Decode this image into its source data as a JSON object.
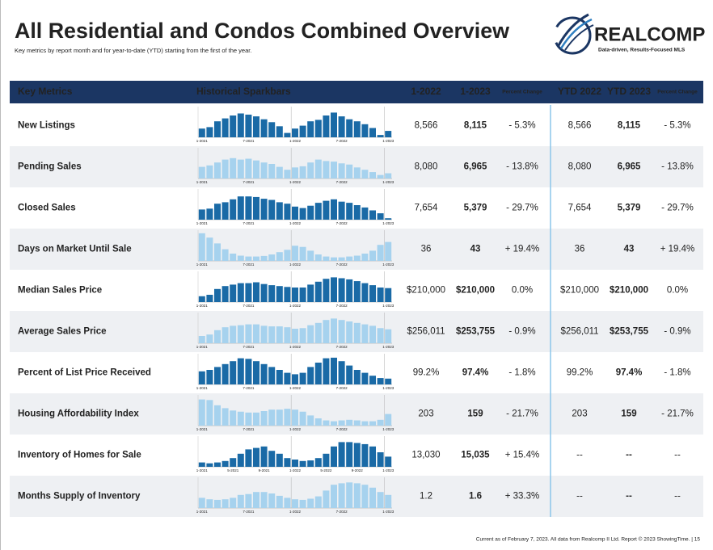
{
  "header": {
    "title": "All Residential and Condos Combined Overview",
    "subtitle": "Key metrics by report month and for year-to-date (YTD) starting from the first of the year."
  },
  "logo": {
    "name": "REALCOMP",
    "tagline": "Data-driven, Results-Focused MLS"
  },
  "table": {
    "columns": [
      "Key Metrics",
      "Historical Sparkbars",
      "1-2022",
      "1-2023",
      "Percent Change",
      "YTD 2022",
      "YTD 2023",
      "Percent Change"
    ],
    "rows": [
      {
        "metric": "New Listings",
        "sparkbars": {
          "color": "#1a6aa6",
          "labels": [
            "1-2021",
            "7-2021",
            "1-2022",
            "7-2022",
            "1-2023"
          ],
          "values": [
            30,
            35,
            55,
            65,
            75,
            82,
            78,
            72,
            62,
            52,
            38,
            15,
            30,
            40,
            55,
            60,
            75,
            85,
            72,
            62,
            55,
            45,
            32,
            8,
            22
          ]
        },
        "cells": [
          "8,566",
          "8,115",
          "- 5.3%",
          "8,566",
          "8,115",
          "- 5.3%"
        ]
      },
      {
        "metric": "Pending Sales",
        "sparkbars": {
          "color": "#a6d2ee",
          "labels": [
            "1-2021",
            "7-2021",
            "1-2022",
            "7-2022",
            "1-2023"
          ],
          "values": [
            40,
            45,
            55,
            65,
            70,
            65,
            68,
            62,
            55,
            50,
            40,
            30,
            38,
            42,
            55,
            65,
            60,
            58,
            52,
            48,
            38,
            30,
            22,
            12,
            18
          ]
        },
        "cells": [
          "8,080",
          "6,965",
          "- 13.8%",
          "8,080",
          "6,965",
          "- 13.8%"
        ]
      },
      {
        "metric": "Closed Sales",
        "sparkbars": {
          "color": "#1a6aa6",
          "labels": [
            "1-2021",
            "7-2021",
            "1-2022",
            "7-2022",
            "1-2023"
          ],
          "values": [
            35,
            38,
            55,
            60,
            70,
            80,
            80,
            78,
            72,
            68,
            60,
            55,
            45,
            40,
            48,
            58,
            65,
            70,
            62,
            58,
            50,
            42,
            32,
            22,
            5
          ]
        },
        "cells": [
          "7,654",
          "5,379",
          "- 29.7%",
          "7,654",
          "5,379",
          "- 29.7%"
        ]
      },
      {
        "metric": "Days on Market Until Sale",
        "sparkbars": {
          "color": "#a6d2ee",
          "labels": [
            "1-2021",
            "7-2021",
            "1-2022",
            "7-2022",
            "1-2023"
          ],
          "values": [
            95,
            80,
            60,
            40,
            25,
            18,
            15,
            15,
            17,
            22,
            30,
            38,
            52,
            48,
            35,
            22,
            15,
            12,
            12,
            15,
            18,
            25,
            35,
            55,
            65
          ]
        },
        "cells": [
          "36",
          "43",
          "+ 19.4%",
          "36",
          "43",
          "+ 19.4%"
        ]
      },
      {
        "metric": "Median Sales Price",
        "sparkbars": {
          "color": "#1a6aa6",
          "labels": [
            "1-2021",
            "7-2021",
            "1-2022",
            "7-2022",
            "1-2023"
          ],
          "values": [
            20,
            25,
            45,
            55,
            60,
            65,
            65,
            68,
            62,
            58,
            55,
            52,
            50,
            50,
            60,
            70,
            80,
            85,
            82,
            78,
            72,
            65,
            58,
            50,
            48
          ]
        },
        "cells": [
          "$210,000",
          "$210,000",
          "0.0%",
          "$210,000",
          "$210,000",
          "0.0%"
        ]
      },
      {
        "metric": "Average Sales Price",
        "sparkbars": {
          "color": "#a6d2ee",
          "labels": [
            "1-2021",
            "7-2021",
            "1-2022",
            "7-2022",
            "1-2023"
          ],
          "values": [
            25,
            30,
            45,
            55,
            60,
            62,
            65,
            65,
            60,
            58,
            58,
            55,
            50,
            52,
            62,
            70,
            80,
            85,
            80,
            75,
            70,
            65,
            60,
            52,
            48
          ]
        },
        "cells": [
          "$256,011",
          "$253,755",
          "- 0.9%",
          "$256,011",
          "$253,755",
          "- 0.9%"
        ]
      },
      {
        "metric": "Percent of List Price Received",
        "sparkbars": {
          "color": "#1a6aa6",
          "labels": [
            "1-2021",
            "7-2021",
            "1-2022",
            "7-2022",
            "1-2023"
          ],
          "values": [
            45,
            50,
            60,
            70,
            80,
            90,
            88,
            80,
            70,
            60,
            50,
            40,
            35,
            40,
            60,
            75,
            90,
            92,
            80,
            65,
            50,
            40,
            30,
            22,
            20
          ]
        },
        "cells": [
          "99.2%",
          "97.4%",
          "- 1.8%",
          "99.2%",
          "97.4%",
          "- 1.8%"
        ]
      },
      {
        "metric": "Housing Affordability Index",
        "sparkbars": {
          "color": "#a6d2ee",
          "labels": [
            "1-2021",
            "7-2021",
            "1-2022",
            "7-2022",
            "1-2023"
          ],
          "values": [
            90,
            88,
            70,
            60,
            52,
            48,
            45,
            45,
            50,
            55,
            55,
            58,
            55,
            48,
            35,
            25,
            18,
            15,
            18,
            20,
            18,
            15,
            15,
            20,
            40
          ]
        },
        "cells": [
          "203",
          "159",
          "- 21.7%",
          "203",
          "159",
          "- 21.7%"
        ]
      },
      {
        "metric": "Inventory of Homes for Sale",
        "sparkbars": {
          "color": "#1a6aa6",
          "labels": [
            "1-2021",
            "5-2021",
            "9-2021",
            "1-2022",
            "5-2022",
            "9-2022",
            "1-2023"
          ],
          "values": [
            15,
            12,
            15,
            20,
            30,
            45,
            60,
            65,
            70,
            55,
            45,
            30,
            25,
            20,
            22,
            30,
            45,
            70,
            85,
            85,
            82,
            78,
            70,
            50,
            35
          ]
        },
        "cells": [
          "13,030",
          "15,035",
          "+ 15.4%",
          "--",
          "--",
          "--"
        ]
      },
      {
        "metric": "Months Supply of Inventory",
        "sparkbars": {
          "color": "#a6d2ee",
          "labels": [
            "1-2021",
            "7-2021",
            "1-2022",
            "7-2022",
            "1-2023"
          ],
          "values": [
            35,
            30,
            28,
            30,
            35,
            45,
            48,
            55,
            55,
            50,
            42,
            35,
            30,
            28,
            32,
            40,
            60,
            80,
            85,
            88,
            85,
            80,
            70,
            55,
            45
          ]
        },
        "cells": [
          "1.2",
          "1.6",
          "+ 33.3%",
          "--",
          "--",
          "--"
        ]
      }
    ]
  },
  "footer": "Current as of February 7, 2023. All data from Realcomp II Ltd. Report © 2023 ShowingTime. | 15"
}
